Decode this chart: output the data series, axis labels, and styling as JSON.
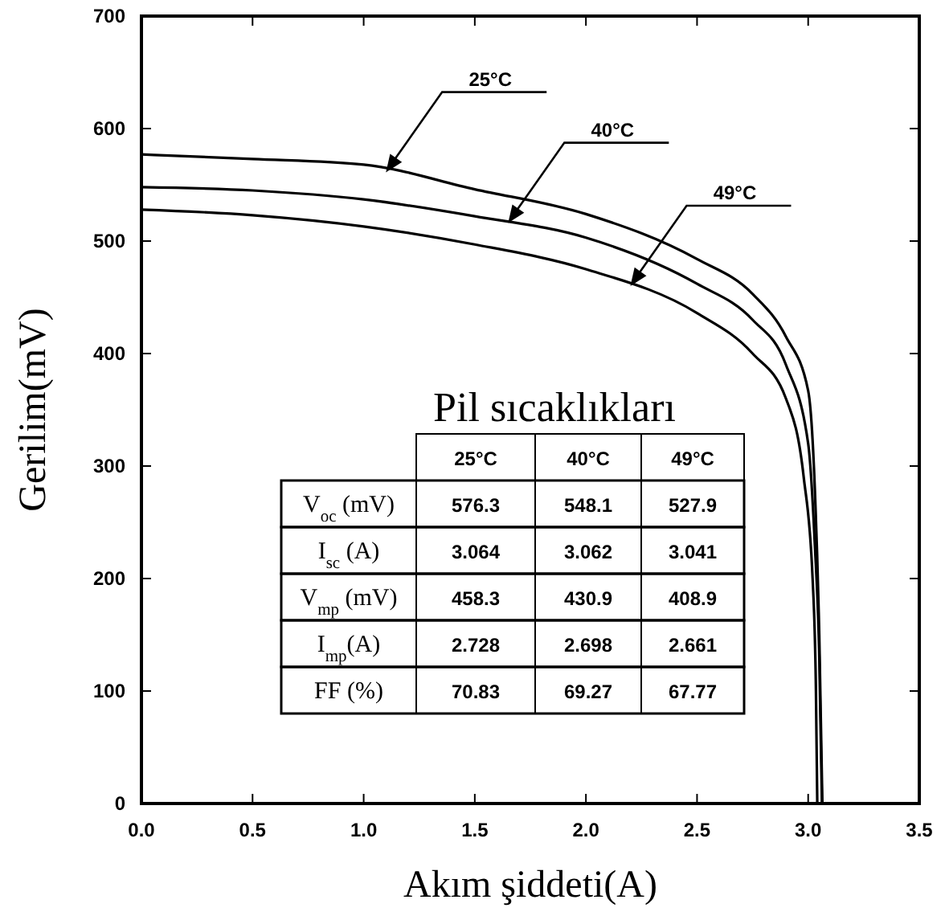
{
  "chart_data": {
    "type": "line",
    "xlabel": "Akım şiddeti(A)",
    "ylabel": "Gerilim(mV)",
    "xlim": [
      0,
      3.5
    ],
    "ylim": [
      0,
      700
    ],
    "xticks": [
      {
        "value": 0,
        "label": "0.0"
      },
      0.5,
      {
        "value": 1,
        "label": "1.0"
      },
      1.5,
      {
        "value": 2,
        "label": "2.0"
      },
      2.5,
      {
        "value": 3,
        "label": "3.0"
      },
      3.5
    ],
    "yticks": [
      0,
      100,
      200,
      300,
      400,
      500,
      600,
      700
    ],
    "grid": false,
    "marker": "none",
    "line_style": "solid",
    "series": [
      {
        "name": "25°C",
        "color": "#000000",
        "x": [
          0,
          0.5,
          1.0,
          1.5,
          2.0,
          2.5,
          2.75,
          2.9,
          3.0,
          3.03,
          3.05,
          3.064
        ],
        "values": [
          577,
          573,
          568,
          546,
          524,
          484,
          453,
          415,
          367,
          280,
          150,
          0
        ]
      },
      {
        "name": "40°C",
        "color": "#000000",
        "x": [
          0,
          0.5,
          1.0,
          1.5,
          2.0,
          2.5,
          2.75,
          2.9,
          3.0,
          3.03,
          3.05,
          3.062
        ],
        "values": [
          548,
          545,
          537,
          522,
          503,
          462,
          430,
          390,
          320,
          230,
          130,
          0
        ]
      },
      {
        "name": "49°C",
        "color": "#000000",
        "x": [
          0,
          0.5,
          1.0,
          1.5,
          2.0,
          2.5,
          2.75,
          2.9,
          2.98,
          3.02,
          3.035,
          3.041
        ],
        "values": [
          528,
          523,
          513,
          497,
          475,
          436,
          400,
          360,
          290,
          200,
          100,
          0
        ]
      }
    ],
    "annotations": [
      "Pil sıcaklıkları",
      "25°C",
      "40°C",
      "49°C",
      "V$_{oc}$ (mV)",
      "576.3",
      "548.1",
      "527.9",
      "I$_{sc}$ (A)",
      "3.064",
      "3.062",
      "3.041",
      "V$_{mp}$ (mV)",
      "458.3",
      "430.9",
      "408.9",
      "I$_{mp}$(A)",
      "2.728",
      "2.698",
      "2.661",
      "FF (%)",
      "70.83",
      "69.27",
      "67.77"
    ]
  }
}
